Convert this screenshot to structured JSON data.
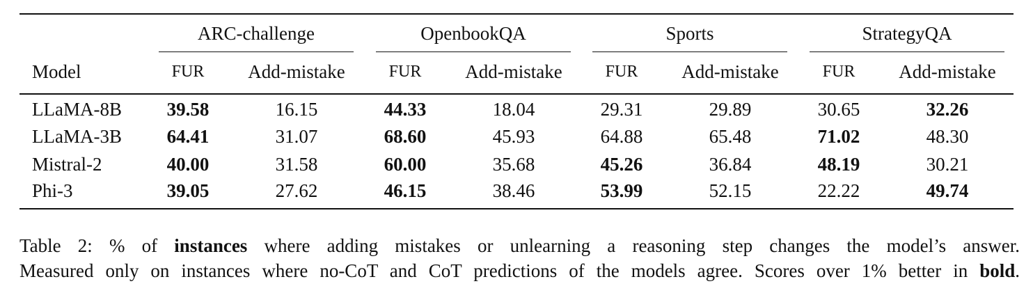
{
  "table": {
    "corner": "Model",
    "groups": [
      "ARC-challenge",
      "OpenbookQA",
      "Sports",
      "StrategyQA"
    ],
    "subheaders": [
      "FUR",
      "Add-mistake"
    ],
    "rows": [
      {
        "model": "LLaMA-8B",
        "cells": [
          "39.58",
          "16.15",
          "44.33",
          "18.04",
          "29.31",
          "29.89",
          "30.65",
          "32.26"
        ],
        "bold": [
          true,
          false,
          true,
          false,
          false,
          false,
          false,
          true
        ]
      },
      {
        "model": "LLaMA-3B",
        "cells": [
          "64.41",
          "31.07",
          "68.60",
          "45.93",
          "64.88",
          "65.48",
          "71.02",
          "48.30"
        ],
        "bold": [
          true,
          false,
          true,
          false,
          false,
          false,
          true,
          false
        ]
      },
      {
        "model": "Mistral-2",
        "cells": [
          "40.00",
          "31.58",
          "60.00",
          "35.68",
          "45.26",
          "36.84",
          "48.19",
          "30.21"
        ],
        "bold": [
          true,
          false,
          true,
          false,
          true,
          false,
          true,
          false
        ]
      },
      {
        "model": "Phi-3",
        "cells": [
          "39.05",
          "27.62",
          "46.15",
          "38.46",
          "53.99",
          "52.15",
          "22.22",
          "49.74"
        ],
        "bold": [
          true,
          false,
          true,
          false,
          true,
          false,
          false,
          true
        ]
      }
    ]
  },
  "caption": {
    "lines": [
      [
        {
          "text": "Table 2:  % of "
        },
        {
          "text": "instances",
          "bold": true
        },
        {
          "text": " where adding mistakes or unlearning a reasoning step changes the model’s answer."
        }
      ],
      [
        {
          "text": "Measured only on instances where no-CoT and CoT predictions of the models agree. Scores over 1% better in "
        },
        {
          "text": "bold",
          "bold": true
        },
        {
          "text": "."
        }
      ]
    ]
  }
}
